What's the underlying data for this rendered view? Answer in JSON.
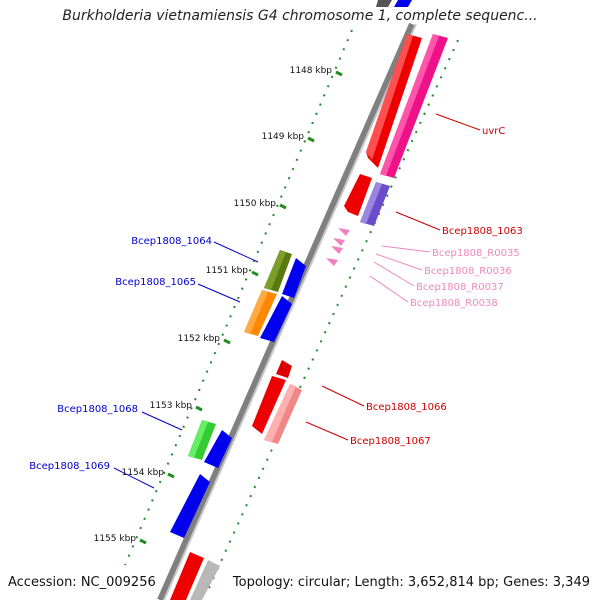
{
  "title": "Burkholderia vietnamiensis G4 chromosome 1, complete sequenc...",
  "footer": {
    "accession": "Accession: NC_009256",
    "info": "Topology: circular; Length: 3,652,814 bp; Genes: 3,349"
  },
  "ticks": [
    {
      "label": "1148 kbp"
    },
    {
      "label": "1149 kbp"
    },
    {
      "label": "1150 kbp"
    },
    {
      "label": "1151 kbp"
    },
    {
      "label": "1152 kbp"
    },
    {
      "label": "1153 kbp"
    },
    {
      "label": "1154 kbp"
    },
    {
      "label": "1155 kbp"
    }
  ],
  "genes": [
    {
      "label": "uvrC",
      "color": "#cc0000"
    },
    {
      "label": "Bcep1808_1063",
      "color": "#cc0000"
    },
    {
      "label": "Bcep1808_R0035",
      "color": "#ee88bb"
    },
    {
      "label": "Bcep1808_R0036",
      "color": "#ee88bb"
    },
    {
      "label": "Bcep1808_R0037",
      "color": "#ee88bb"
    },
    {
      "label": "Bcep1808_R0038",
      "color": "#ee88bb"
    },
    {
      "label": "Bcep1808_1066",
      "color": "#cc0000"
    },
    {
      "label": "Bcep1808_1067",
      "color": "#cc0000"
    },
    {
      "label": "Bcep1808_1064",
      "color": "#0000cc"
    },
    {
      "label": "Bcep1808_1065",
      "color": "#0000cc"
    },
    {
      "label": "Bcep1808_1068",
      "color": "#0000cc"
    },
    {
      "label": "Bcep1808_1069",
      "color": "#0000cc"
    }
  ]
}
